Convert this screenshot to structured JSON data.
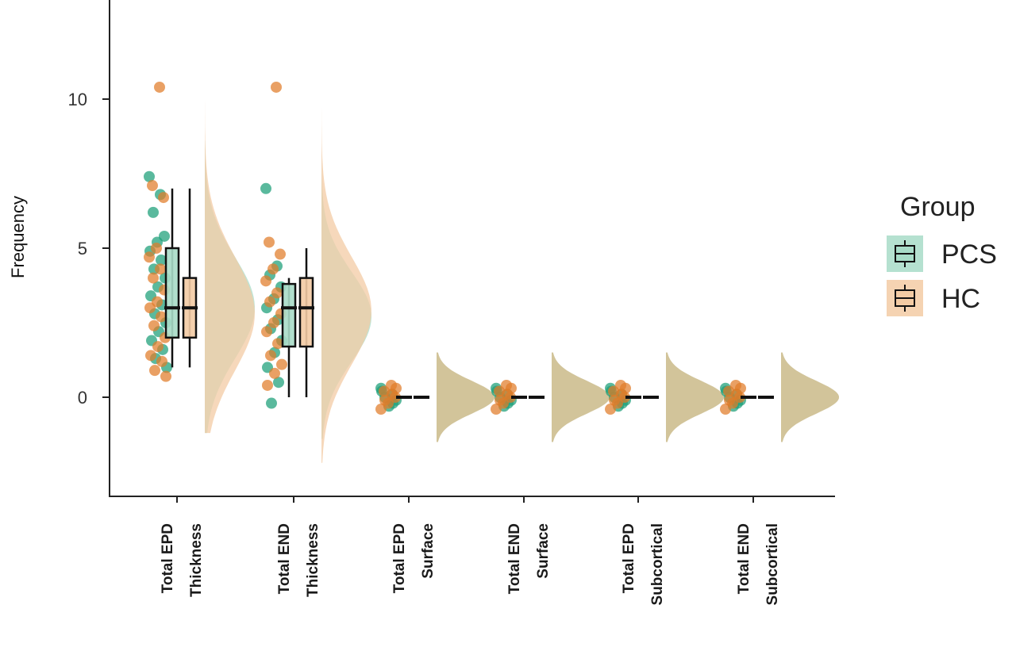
{
  "chart_data": {
    "type": "raincloud",
    "ylabel": "Frequency",
    "xlabel": "",
    "ylim": [
      -3.2,
      13.2
    ],
    "yticks": [
      0,
      5,
      10
    ],
    "grid": false,
    "legend_placement": "right",
    "legend_title": "Group",
    "categories": [
      [
        "Total EPD",
        "Thickness"
      ],
      [
        "Total END",
        "Thickness"
      ],
      [
        "Total EPD",
        "Surface"
      ],
      [
        "Total END",
        "Surface"
      ],
      [
        "Total EPD",
        "Subcortical"
      ],
      [
        "Total END",
        "Subcortical"
      ]
    ],
    "series": [
      {
        "name": "PCS",
        "color": "#1b9e77",
        "fill": "#a8dcc8",
        "boxes": [
          {
            "q1": 2,
            "median": 3,
            "q3": 5,
            "lo": 1,
            "hi": 7
          },
          {
            "q1": 1.7,
            "median": 3,
            "q3": 3.8,
            "lo": 0,
            "hi": 4
          },
          {
            "q1": 0,
            "median": 0,
            "q3": 0,
            "lo": 0,
            "hi": 0
          },
          {
            "q1": 0,
            "median": 0,
            "q3": 0,
            "lo": 0,
            "hi": 0
          },
          {
            "q1": 0,
            "median": 0,
            "q3": 0,
            "lo": 0,
            "hi": 0
          },
          {
            "q1": 0,
            "median": 0,
            "q3": 0,
            "lo": 0,
            "hi": 0
          }
        ],
        "density": [
          {
            "mean": 3.0,
            "sd": 1.7,
            "ymin": -1.2,
            "ymax": 8.6
          },
          {
            "mean": 2.7,
            "sd": 1.5,
            "ymin": -1.4,
            "ymax": 8.0
          },
          {
            "mean": 0,
            "sd": 0.55,
            "ymin": -1.5,
            "ymax": 1.5
          },
          {
            "mean": 0,
            "sd": 0.55,
            "ymin": -1.5,
            "ymax": 1.5
          },
          {
            "mean": 0,
            "sd": 0.55,
            "ymin": -1.5,
            "ymax": 1.5
          },
          {
            "mean": 0,
            "sd": 0.55,
            "ymin": -1.5,
            "ymax": 1.5
          }
        ],
        "points": [
          [
            7.4,
            6.8,
            6.2,
            5.4,
            5.2,
            4.9,
            4.6,
            4.3,
            4.0,
            3.7,
            3.4,
            3.1,
            2.8,
            2.5,
            2.2,
            1.9,
            1.6,
            1.3,
            1.0
          ],
          [
            7.0,
            4.4,
            4.1,
            3.7,
            3.3,
            3.0,
            2.6,
            2.3,
            1.9,
            1.5,
            1.0,
            0.5,
            -0.2
          ],
          [
            0.3,
            0.1,
            0.0,
            -0.1,
            -0.3,
            0.2,
            -0.2
          ],
          [
            0.3,
            0.1,
            0.0,
            -0.1,
            -0.3,
            0.2,
            -0.2
          ],
          [
            0.3,
            0.1,
            0.0,
            -0.1,
            -0.3,
            0.2,
            -0.2
          ],
          [
            0.3,
            0.1,
            0.0,
            -0.1,
            -0.3,
            0.2,
            -0.2
          ]
        ]
      },
      {
        "name": "HC",
        "color": "#e07b28",
        "fill": "#f3cba4",
        "boxes": [
          {
            "q1": 2,
            "median": 3,
            "q3": 4,
            "lo": 1,
            "hi": 7
          },
          {
            "q1": 1.7,
            "median": 3,
            "q3": 4,
            "lo": 0,
            "hi": 5
          },
          {
            "q1": 0,
            "median": 0,
            "q3": 0,
            "lo": 0,
            "hi": 0
          },
          {
            "q1": 0,
            "median": 0,
            "q3": 0,
            "lo": 0,
            "hi": 0
          },
          {
            "q1": 0,
            "median": 0,
            "q3": 0,
            "lo": 0,
            "hi": 0
          },
          {
            "q1": 0,
            "median": 0,
            "q3": 0,
            "lo": 0,
            "hi": 0
          }
        ],
        "density": [
          {
            "mean": 2.8,
            "sd": 1.9,
            "ymin": -1.2,
            "ymax": 11.0
          },
          {
            "mean": 2.9,
            "sd": 1.8,
            "ymin": -2.2,
            "ymax": 11.3
          },
          {
            "mean": 0,
            "sd": 0.55,
            "ymin": -1.5,
            "ymax": 1.5
          },
          {
            "mean": 0,
            "sd": 0.55,
            "ymin": -1.5,
            "ymax": 1.5
          },
          {
            "mean": 0,
            "sd": 0.55,
            "ymin": -1.5,
            "ymax": 1.5
          },
          {
            "mean": 0,
            "sd": 0.55,
            "ymin": -1.5,
            "ymax": 1.5
          }
        ],
        "points": [
          [
            10.4,
            7.1,
            6.7,
            5.0,
            4.7,
            4.3,
            4.0,
            3.6,
            3.2,
            3.0,
            2.7,
            2.4,
            2.0,
            1.7,
            1.4,
            1.2,
            0.9,
            0.7
          ],
          [
            10.4,
            5.2,
            4.8,
            4.3,
            3.9,
            3.5,
            3.2,
            2.8,
            2.5,
            2.2,
            1.8,
            1.4,
            1.1,
            0.8,
            0.4
          ],
          [
            0.4,
            0.2,
            0.0,
            -0.2,
            -0.4,
            0.1,
            -0.1,
            0.3
          ],
          [
            0.4,
            0.2,
            0.0,
            -0.2,
            -0.4,
            0.1,
            -0.1,
            0.3
          ],
          [
            0.4,
            0.2,
            0.0,
            -0.2,
            -0.4,
            0.1,
            -0.1,
            0.3
          ],
          [
            0.4,
            0.2,
            0.0,
            -0.2,
            -0.4,
            0.1,
            -0.1,
            0.3
          ]
        ]
      }
    ]
  }
}
